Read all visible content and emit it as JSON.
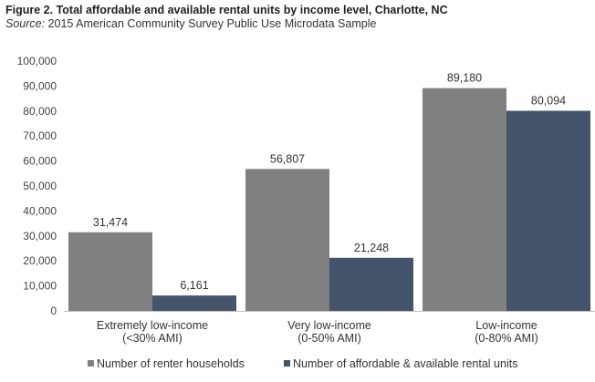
{
  "header": {
    "title": "Figure 2. Total affordable and available rental units by income level, Charlotte, NC",
    "source_label": "Source:",
    "source_text": " 2015 American Community Survey Public Use Microdata Sample"
  },
  "chart_data": {
    "type": "bar",
    "categories": [
      [
        "Extremely low-income",
        "(<30% AMI)"
      ],
      [
        "Very low-income",
        "(0-50% AMI)"
      ],
      [
        "Low-income",
        "(0-80% AMI)"
      ]
    ],
    "series": [
      {
        "name": "Number of renter households",
        "values": [
          31474,
          56807,
          89180
        ],
        "labels": [
          "31,474",
          "56,807",
          "89,180"
        ],
        "color": "#808080"
      },
      {
        "name": "Number of affordable & available rental units",
        "values": [
          6161,
          21248,
          80094
        ],
        "labels": [
          "6,161",
          "21,248",
          "80,094"
        ],
        "color": "#44546a"
      }
    ],
    "yticks": [
      "0",
      "10,000",
      "20,000",
      "30,000",
      "40,000",
      "50,000",
      "60,000",
      "70,000",
      "80,000",
      "90,000",
      "100,000"
    ],
    "ylim": [
      0,
      100000
    ],
    "legend": "bottom"
  }
}
